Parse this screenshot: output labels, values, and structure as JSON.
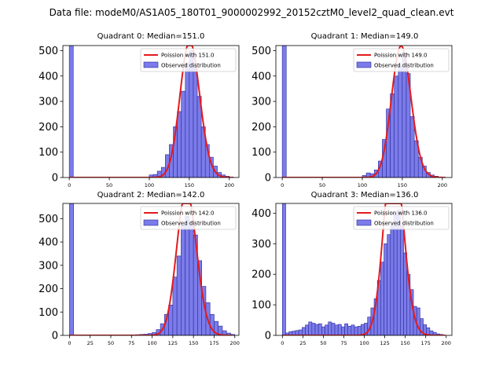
{
  "suptitle": "Data file: modeM0/AS1A05_180T01_9000002992_20152cztM0_level2_quad_clean.evt",
  "colors": {
    "hist_fill": "#7b7bea",
    "hist_edge": "#2b2b9a",
    "poisson_line": "#e41a1c",
    "axes": "#000000"
  },
  "chart_data": [
    {
      "type": "bar",
      "title": "Quadrant 0: Median=151.0",
      "legend": [
        "Poission with 151.0",
        "Observed distribution"
      ],
      "legend_loc": "upper right",
      "xlim": [
        -8,
        212
      ],
      "ylim": [
        0,
        520
      ],
      "xticks": [
        0,
        50,
        100,
        150,
        200
      ],
      "yticks": [
        0,
        100,
        200,
        300,
        400,
        500
      ],
      "bin_width": 5,
      "bins": [
        [
          0,
          520
        ],
        [
          100,
          10
        ],
        [
          105,
          12
        ],
        [
          110,
          25
        ],
        [
          115,
          40
        ],
        [
          120,
          90
        ],
        [
          125,
          130
        ],
        [
          130,
          200
        ],
        [
          135,
          260
        ],
        [
          140,
          340
        ],
        [
          145,
          450
        ],
        [
          150,
          500
        ],
        [
          155,
          440
        ],
        [
          160,
          320
        ],
        [
          165,
          200
        ],
        [
          170,
          130
        ],
        [
          175,
          80
        ],
        [
          180,
          45
        ],
        [
          185,
          20
        ],
        [
          190,
          10
        ],
        [
          195,
          5
        ],
        [
          200,
          2
        ]
      ],
      "poisson_lambda": 151.0
    },
    {
      "type": "bar",
      "title": "Quadrant 1: Median=149.0",
      "legend": [
        "Poission with 149.0",
        "Observed distribution"
      ],
      "legend_loc": "upper right",
      "xlim": [
        -8,
        212
      ],
      "ylim": [
        0,
        520
      ],
      "xticks": [
        0,
        50,
        100,
        150,
        200
      ],
      "yticks": [
        0,
        100,
        200,
        300,
        400,
        500
      ],
      "bin_width": 5,
      "bins": [
        [
          0,
          520
        ],
        [
          100,
          8
        ],
        [
          105,
          18
        ],
        [
          110,
          15
        ],
        [
          115,
          30
        ],
        [
          120,
          65
        ],
        [
          125,
          150
        ],
        [
          130,
          270
        ],
        [
          135,
          330
        ],
        [
          140,
          400
        ],
        [
          145,
          440
        ],
        [
          150,
          490
        ],
        [
          155,
          410
        ],
        [
          160,
          240
        ],
        [
          165,
          145
        ],
        [
          170,
          80
        ],
        [
          175,
          45
        ],
        [
          180,
          20
        ],
        [
          185,
          10
        ],
        [
          190,
          5
        ],
        [
          195,
          2
        ]
      ],
      "poisson_lambda": 149.0
    },
    {
      "type": "bar",
      "title": "Quadrant 2: Median=142.0",
      "legend": [
        "Poission with 142.0",
        "Observed distribution"
      ],
      "legend_loc": "upper right",
      "xlim": [
        -8,
        205
      ],
      "ylim": [
        0,
        565
      ],
      "xticks": [
        0,
        25,
        50,
        75,
        100,
        125,
        150,
        175,
        200
      ],
      "yticks": [
        0,
        100,
        200,
        300,
        400,
        500
      ],
      "bin_width": 5,
      "bins": [
        [
          0,
          565
        ],
        [
          80,
          3
        ],
        [
          85,
          4
        ],
        [
          90,
          5
        ],
        [
          95,
          8
        ],
        [
          100,
          12
        ],
        [
          105,
          25
        ],
        [
          110,
          50
        ],
        [
          115,
          90
        ],
        [
          120,
          130
        ],
        [
          125,
          250
        ],
        [
          130,
          340
        ],
        [
          135,
          470
        ],
        [
          140,
          510
        ],
        [
          145,
          490
        ],
        [
          150,
          430
        ],
        [
          155,
          320
        ],
        [
          160,
          210
        ],
        [
          165,
          140
        ],
        [
          170,
          90
        ],
        [
          175,
          60
        ],
        [
          180,
          40
        ],
        [
          185,
          20
        ],
        [
          190,
          10
        ],
        [
          195,
          4
        ]
      ],
      "poisson_lambda": 142.0
    },
    {
      "type": "bar",
      "title": "Quadrant 3: Median=136.0",
      "legend": [
        "Poission with 136.0",
        "Observed distribution"
      ],
      "legend_loc": "upper right",
      "xlim": [
        -8,
        207
      ],
      "ylim": [
        0,
        432
      ],
      "xticks": [
        0,
        25,
        50,
        75,
        100,
        125,
        150,
        175,
        200
      ],
      "yticks": [
        0,
        100,
        200,
        300,
        400
      ],
      "bin_width": 4,
      "bins": [
        [
          0,
          432
        ],
        [
          4,
          8
        ],
        [
          8,
          12
        ],
        [
          12,
          14
        ],
        [
          16,
          16
        ],
        [
          20,
          18
        ],
        [
          24,
          26
        ],
        [
          28,
          34
        ],
        [
          32,
          44
        ],
        [
          36,
          40
        ],
        [
          40,
          36
        ],
        [
          44,
          38
        ],
        [
          48,
          28
        ],
        [
          52,
          34
        ],
        [
          56,
          44
        ],
        [
          60,
          40
        ],
        [
          64,
          34
        ],
        [
          68,
          36
        ],
        [
          72,
          28
        ],
        [
          76,
          38
        ],
        [
          80,
          30
        ],
        [
          84,
          34
        ],
        [
          88,
          28
        ],
        [
          92,
          30
        ],
        [
          96,
          36
        ],
        [
          100,
          40
        ],
        [
          104,
          60
        ],
        [
          108,
          90
        ],
        [
          112,
          120
        ],
        [
          116,
          180
        ],
        [
          120,
          240
        ],
        [
          124,
          300
        ],
        [
          128,
          330
        ],
        [
          132,
          360
        ],
        [
          136,
          400
        ],
        [
          140,
          410
        ],
        [
          144,
          360
        ],
        [
          148,
          270
        ],
        [
          152,
          200
        ],
        [
          156,
          150
        ],
        [
          160,
          95
        ],
        [
          164,
          90
        ],
        [
          168,
          55
        ],
        [
          172,
          35
        ],
        [
          176,
          25
        ],
        [
          180,
          15
        ],
        [
          184,
          10
        ],
        [
          188,
          5
        ],
        [
          192,
          3
        ]
      ],
      "poisson_lambda": 136.0
    }
  ]
}
